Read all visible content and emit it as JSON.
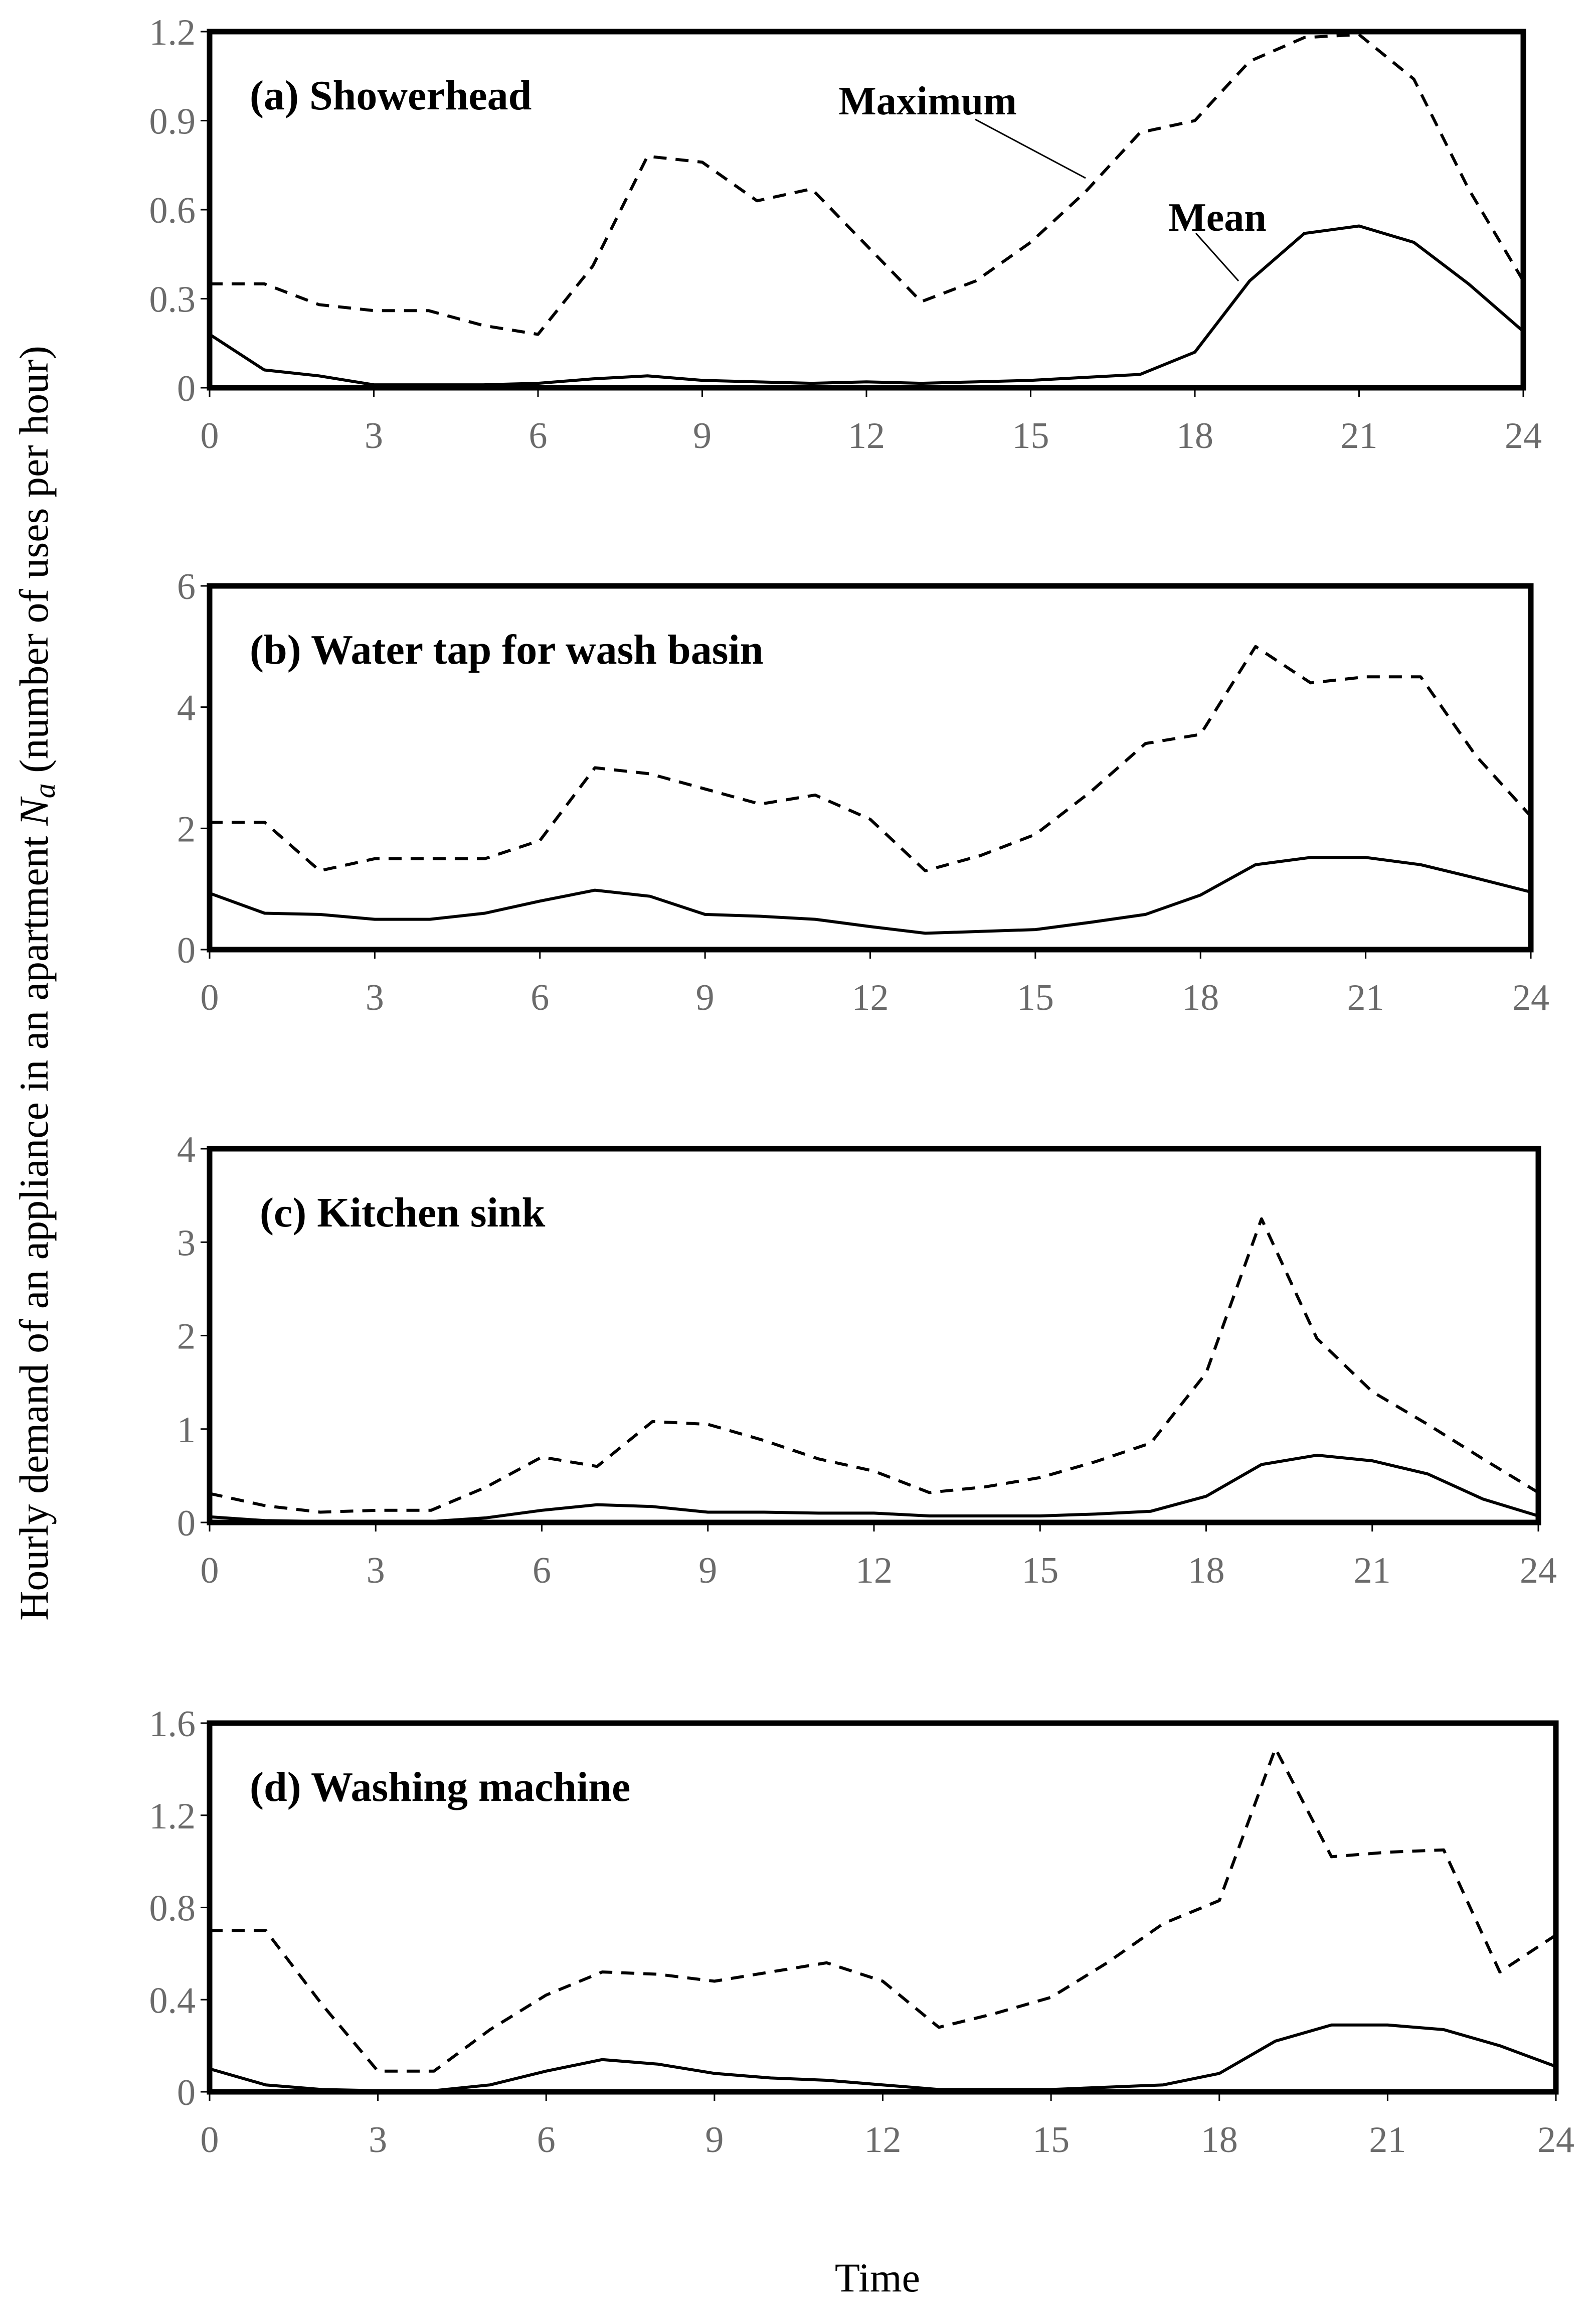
{
  "figure": {
    "ylabel_prefix": "Hourly demand of an appliance in an apartment ",
    "ylabel_symbol": "N",
    "ylabel_subscript": "a",
    "ylabel_suffix": " (number of uses per hour)",
    "xlabel": "Time"
  },
  "chart_data": [
    {
      "type": "line",
      "title": "(a) Showerhead",
      "xlabel": "Time",
      "ylabel": "Hourly demand of an appliance in an apartment Na (number of uses per hour)",
      "xlim": [
        0,
        24
      ],
      "ylim": [
        0,
        1.2
      ],
      "xticks": [
        "0",
        "3",
        "6",
        "9",
        "12",
        "15",
        "18",
        "21",
        "24"
      ],
      "yticks": [
        "0",
        "0.3",
        "0.6",
        "0.9",
        "1.2"
      ],
      "x": [
        0,
        1,
        2,
        3,
        4,
        5,
        6,
        7,
        8,
        9,
        10,
        11,
        12,
        13,
        14,
        15,
        16,
        17,
        18,
        19,
        20,
        21,
        22,
        23,
        24
      ],
      "series": [
        {
          "name": "Mean",
          "style": "solid",
          "values": [
            0.18,
            0.06,
            0.04,
            0.01,
            0.01,
            0.01,
            0.015,
            0.03,
            0.04,
            0.025,
            0.02,
            0.015,
            0.02,
            0.015,
            0.02,
            0.025,
            0.035,
            0.045,
            0.12,
            0.36,
            0.52,
            0.545,
            0.49,
            0.35,
            0.19
          ]
        },
        {
          "name": "Maximum",
          "style": "dashed",
          "values": [
            0.35,
            0.35,
            0.28,
            0.26,
            0.26,
            0.21,
            0.18,
            0.41,
            0.78,
            0.76,
            0.63,
            0.67,
            0.48,
            0.29,
            0.36,
            0.49,
            0.66,
            0.86,
            0.9,
            1.1,
            1.18,
            1.19,
            1.04,
            0.67,
            0.36
          ]
        }
      ],
      "annotations": [
        "Maximum",
        "Mean"
      ]
    },
    {
      "type": "line",
      "title": "(b) Water tap for wash basin",
      "xlim": [
        0,
        24
      ],
      "ylim": [
        0,
        6
      ],
      "xticks": [
        "0",
        "3",
        "6",
        "9",
        "12",
        "15",
        "18",
        "21",
        "24"
      ],
      "yticks": [
        "0",
        "2",
        "4",
        "6"
      ],
      "x": [
        0,
        1,
        2,
        3,
        4,
        5,
        6,
        7,
        8,
        9,
        10,
        11,
        12,
        13,
        14,
        15,
        16,
        17,
        18,
        19,
        20,
        21,
        22,
        23,
        24
      ],
      "series": [
        {
          "name": "Mean",
          "style": "solid",
          "values": [
            0.93,
            0.6,
            0.58,
            0.5,
            0.5,
            0.6,
            0.8,
            0.98,
            0.88,
            0.58,
            0.55,
            0.5,
            0.38,
            0.27,
            0.3,
            0.33,
            0.45,
            0.58,
            0.9,
            1.4,
            1.52,
            1.52,
            1.4,
            1.18,
            0.95
          ]
        },
        {
          "name": "Maximum",
          "style": "dashed",
          "values": [
            2.1,
            2.1,
            1.3,
            1.5,
            1.5,
            1.5,
            1.8,
            3.0,
            2.9,
            2.65,
            2.4,
            2.55,
            2.15,
            1.3,
            1.55,
            1.9,
            2.6,
            3.4,
            3.55,
            5.0,
            4.4,
            4.5,
            4.5,
            3.2,
            2.2
          ]
        }
      ]
    },
    {
      "type": "line",
      "title": "(c) Kitchen sink",
      "xlim": [
        0,
        24
      ],
      "ylim": [
        0,
        4
      ],
      "xticks": [
        "0",
        "3",
        "6",
        "9",
        "12",
        "15",
        "18",
        "21",
        "24"
      ],
      "yticks": [
        "0",
        "1",
        "2",
        "3",
        "4"
      ],
      "x": [
        0,
        1,
        2,
        3,
        4,
        5,
        6,
        7,
        8,
        9,
        10,
        11,
        12,
        13,
        14,
        15,
        16,
        17,
        18,
        19,
        20,
        21,
        22,
        23,
        24
      ],
      "series": [
        {
          "name": "Mean",
          "style": "solid",
          "values": [
            0.06,
            0.02,
            0.01,
            0.01,
            0.01,
            0.05,
            0.13,
            0.19,
            0.17,
            0.11,
            0.11,
            0.1,
            0.1,
            0.07,
            0.07,
            0.07,
            0.09,
            0.12,
            0.28,
            0.62,
            0.72,
            0.66,
            0.52,
            0.25,
            0.07
          ]
        },
        {
          "name": "Maximum",
          "style": "dashed",
          "values": [
            0.31,
            0.18,
            0.11,
            0.13,
            0.13,
            0.38,
            0.7,
            0.6,
            1.08,
            1.05,
            0.88,
            0.68,
            0.55,
            0.32,
            0.38,
            0.48,
            0.65,
            0.85,
            1.6,
            3.25,
            1.97,
            1.4,
            1.05,
            0.68,
            0.32
          ]
        }
      ]
    },
    {
      "type": "line",
      "title": "(d) Washing machine",
      "xlim": [
        0,
        24
      ],
      "ylim": [
        0,
        1.6
      ],
      "xticks": [
        "0",
        "3",
        "6",
        "9",
        "12",
        "15",
        "18",
        "21",
        "24"
      ],
      "yticks": [
        "0",
        "0.4",
        "0.8",
        "1.2",
        "1.6"
      ],
      "x": [
        0,
        1,
        2,
        3,
        4,
        5,
        6,
        7,
        8,
        9,
        10,
        11,
        12,
        13,
        14,
        15,
        16,
        17,
        18,
        19,
        20,
        21,
        22,
        23,
        24
      ],
      "series": [
        {
          "name": "Mean",
          "style": "solid",
          "values": [
            0.1,
            0.03,
            0.01,
            0.005,
            0.005,
            0.03,
            0.09,
            0.14,
            0.12,
            0.08,
            0.06,
            0.05,
            0.03,
            0.01,
            0.01,
            0.01,
            0.02,
            0.03,
            0.08,
            0.22,
            0.29,
            0.29,
            0.27,
            0.2,
            0.11
          ]
        },
        {
          "name": "Maximum",
          "style": "dashed",
          "values": [
            0.7,
            0.7,
            0.38,
            0.09,
            0.09,
            0.27,
            0.42,
            0.52,
            0.51,
            0.48,
            0.52,
            0.56,
            0.48,
            0.28,
            0.34,
            0.41,
            0.56,
            0.73,
            0.83,
            1.49,
            1.02,
            1.04,
            1.05,
            0.52,
            0.68
          ]
        }
      ]
    }
  ]
}
